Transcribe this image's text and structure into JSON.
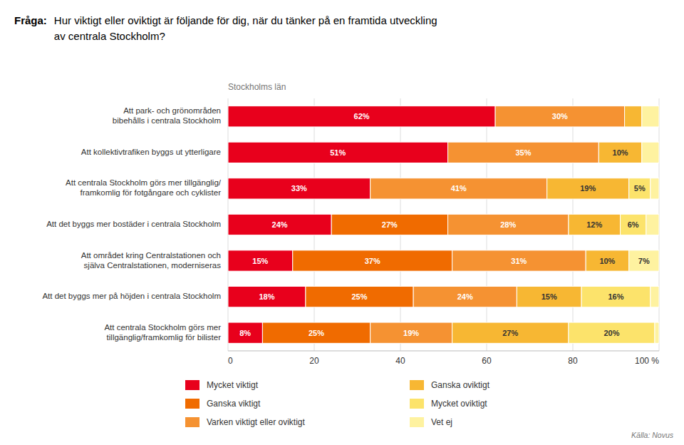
{
  "chart_data": {
    "type": "bar",
    "orientation": "horizontal",
    "stacked": true,
    "title": [
      "Fråga:",
      "Hur viktigt eller oviktigt är följande för dig, när du tänker på en framtida utveckling",
      "av centrala Stockholm?"
    ],
    "subtitle": "Stockholms län",
    "categories": [
      "Att park- och grönområden\nbibehålls i centrala Stockholm",
      "Att kollektivtrafiken byggs ut ytterligare",
      "Att centrala Stockholm görs mer tillgänglig/\nframkomlig för fotgångare och cyklister",
      "Att det byggs mer bostäder i centrala Stockholm",
      "Att området kring Centralstationen och\nsjälva Centralstationen, moderniseras",
      "Att det byggs mer på höjden i centrala Stockholm",
      "Att centrala Stockholm görs mer\ntillgänglig/framkomlig för bilister"
    ],
    "series": [
      {
        "name": "Mycket viktigt",
        "color": "#e8001c",
        "values": [
          62,
          51,
          33,
          24,
          15,
          18,
          8
        ],
        "value_labels": [
          "62%",
          "51%",
          "33%",
          "24%",
          "15%",
          "18%",
          "8%"
        ]
      },
      {
        "name": "Ganska viktigt",
        "color": "#f06b00",
        "values": [
          0,
          0,
          0,
          27,
          37,
          25,
          25
        ],
        "value_labels": [
          null,
          null,
          null,
          "27%",
          "37%",
          "25%",
          "25%"
        ]
      },
      {
        "name": "Varken viktigt eller oviktigt",
        "color": "#f59232",
        "values": [
          30,
          35,
          41,
          28,
          31,
          24,
          19
        ],
        "value_labels": [
          "30%",
          "35%",
          "41%",
          "28%",
          "31%",
          "24%",
          "19%"
        ]
      },
      {
        "name": "Ganska oviktigt",
        "color": "#f7b733",
        "values": [
          4,
          10,
          19,
          12,
          10,
          15,
          27
        ],
        "value_labels": [
          null,
          "10%",
          "19%",
          "12%",
          "10%",
          "15%",
          "27%"
        ]
      },
      {
        "name": "Mycket oviktigt",
        "color": "#fce36b",
        "values": [
          0,
          0,
          5,
          6,
          0,
          16,
          20
        ],
        "value_labels": [
          null,
          null,
          "5%",
          "6%",
          null,
          "16%",
          "20%"
        ]
      },
      {
        "name": "Vet ej",
        "color": "#fef2a0",
        "values": [
          4,
          4,
          2,
          3,
          7,
          2,
          1
        ],
        "value_labels": [
          null,
          null,
          null,
          null,
          "7%",
          null,
          null
        ]
      }
    ],
    "xlim": [
      0,
      100
    ],
    "xticks": [
      0,
      20,
      40,
      60,
      80,
      {
        "value": 100,
        "label": "100 %"
      }
    ],
    "grid": true,
    "legend": "bottom",
    "data_labels": true,
    "annotations": [
      "Källa: Novus"
    ]
  }
}
